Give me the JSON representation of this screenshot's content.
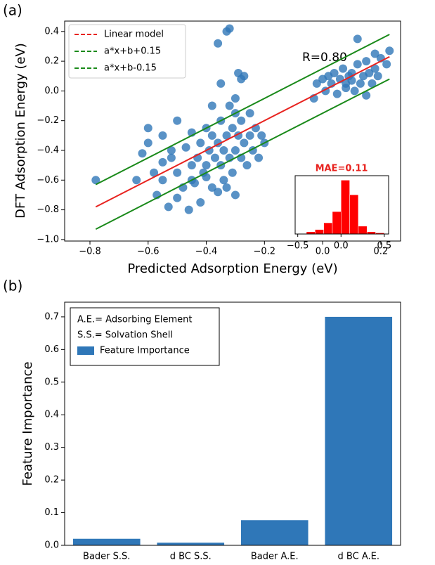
{
  "chart_data": [
    {
      "type": "scatter",
      "panel_label": "(a)",
      "x_label": "Predicted Adsorption Energy (eV)",
      "y_label": "DFT Adsorption Energy (eV)",
      "annotation": "R=0.80",
      "color": "#2f77b8",
      "x": [
        -0.78,
        -0.62,
        -0.6,
        -0.58,
        -0.57,
        -0.55,
        -0.55,
        -0.53,
        -0.52,
        -0.5,
        -0.5,
        -0.48,
        -0.47,
        -0.46,
        -0.45,
        -0.45,
        -0.44,
        -0.43,
        -0.42,
        -0.42,
        -0.41,
        -0.4,
        -0.4,
        -0.39,
        -0.38,
        -0.38,
        -0.37,
        -0.36,
        -0.36,
        -0.35,
        -0.35,
        -0.34,
        -0.34,
        -0.33,
        -0.33,
        -0.32,
        -0.32,
        -0.31,
        -0.31,
        -0.3,
        -0.3,
        -0.3,
        -0.29,
        -0.29,
        -0.28,
        -0.28,
        -0.27,
        -0.27,
        -0.26,
        -0.25,
        -0.25,
        -0.24,
        -0.23,
        -0.22,
        -0.21,
        -0.2,
        -0.38,
        -0.35,
        -0.32,
        -0.3,
        -0.28,
        -0.45,
        -0.5,
        -0.55,
        -0.6,
        -0.4,
        -0.33,
        -0.36,
        -0.64,
        -0.52,
        -0.02,
        0.0,
        0.01,
        0.02,
        0.03,
        0.04,
        0.05,
        0.06,
        0.07,
        0.08,
        0.09,
        0.1,
        0.11,
        0.12,
        0.13,
        0.14,
        0.15,
        0.16,
        0.17,
        0.18,
        0.19,
        0.2,
        0.22,
        0.23,
        0.12,
        0.08,
        0.1,
        0.15,
        0.18,
        -0.03
      ],
      "values": [
        -0.6,
        -0.42,
        -0.25,
        -0.55,
        -0.7,
        -0.3,
        -0.6,
        -0.78,
        -0.45,
        -0.55,
        -0.2,
        -0.65,
        -0.38,
        -0.8,
        -0.5,
        -0.28,
        -0.62,
        -0.45,
        -0.75,
        -0.35,
        -0.55,
        -0.5,
        -0.25,
        -0.4,
        -0.65,
        -0.1,
        -0.45,
        0.32,
        -0.35,
        -0.5,
        -0.2,
        -0.4,
        -0.6,
        0.4,
        -0.3,
        -0.45,
        -0.1,
        -0.55,
        -0.25,
        -0.4,
        -0.05,
        -0.7,
        -0.3,
        0.12,
        -0.45,
        -0.2,
        -0.35,
        0.1,
        -0.5,
        -0.3,
        -0.15,
        -0.4,
        -0.25,
        -0.45,
        -0.3,
        -0.35,
        -0.3,
        0.05,
        0.42,
        -0.15,
        0.08,
        -0.6,
        -0.72,
        -0.48,
        -0.35,
        -0.58,
        -0.65,
        -0.68,
        -0.6,
        -0.4,
        0.05,
        0.08,
        0.0,
        0.1,
        0.05,
        0.12,
        -0.02,
        0.08,
        0.15,
        0.05,
        0.1,
        0.12,
        0.0,
        0.18,
        0.05,
        0.1,
        0.2,
        0.12,
        0.05,
        0.15,
        0.1,
        0.22,
        0.18,
        0.27,
        0.35,
        0.02,
        0.07,
        -0.03,
        0.25,
        -0.05
      ],
      "lines": [
        {
          "name": "Linear model",
          "color": "#e8231f",
          "x": [
            -0.78,
            0.23
          ],
          "values": [
            -0.78,
            0.23
          ]
        },
        {
          "name": "a*x+b+0.15",
          "color": "#1a8a1a",
          "x": [
            -0.78,
            0.23
          ],
          "values": [
            -0.63,
            0.38
          ]
        },
        {
          "name": "a*x+b-0.15",
          "color": "#1a8a1a",
          "x": [
            -0.78,
            0.23
          ],
          "values": [
            -0.93,
            0.08
          ]
        }
      ],
      "xlim": [
        -0.887,
        0.268
      ],
      "ylim": [
        -1.01,
        0.47
      ],
      "xticks": [
        {
          "value": -0.8,
          "label": "−0.8"
        },
        {
          "value": -0.6,
          "label": "−0.6"
        },
        {
          "value": -0.4,
          "label": "−0.4"
        },
        {
          "value": -0.2,
          "label": "−0.2"
        },
        {
          "value": 0,
          "label": "0.0"
        },
        0.2
      ],
      "yticks": [
        {
          "value": -1.0,
          "label": "−1.0"
        },
        {
          "value": -0.8,
          "label": "−0.8"
        },
        {
          "value": -0.6,
          "label": "−0.6"
        },
        {
          "value": -0.4,
          "label": "−0.4"
        },
        {
          "value": -0.2,
          "label": "−0.2"
        },
        {
          "value": 0,
          "label": "0.0"
        },
        0.2,
        0.4
      ]
    },
    {
      "type": "histogram",
      "title": "MAE=0.11",
      "color": "#ff0000",
      "bins": [
        -0.5,
        -0.4,
        -0.3,
        -0.2,
        -0.1,
        0.0,
        0.1,
        0.2,
        0.3,
        0.4,
        0.5
      ],
      "values": [
        0,
        2,
        4,
        10,
        20,
        48,
        35,
        7,
        2,
        1
      ],
      "xlim": [
        -0.53,
        0.55
      ],
      "ylim": [
        0,
        52
      ],
      "xticks": [
        {
          "value": -0.5,
          "label": "−0.5"
        },
        {
          "value": 0,
          "label": "0.0"
        },
        0.5
      ]
    },
    {
      "type": "bar",
      "panel_label": "(b)",
      "y_label": "Feature Importance",
      "legend_notes": [
        "A.E.= Adsorbing Element",
        "S.S.= Solvation Shell"
      ],
      "categories": [
        "Bader S.S.",
        "d BC S.S.",
        "Bader A.E.",
        "d BC A.E."
      ],
      "series": [
        {
          "name": "Feature Importance",
          "color": "#2f77b8",
          "values": [
            0.02,
            0.008,
            0.077,
            0.7
          ]
        }
      ],
      "ylim": [
        0,
        0.745
      ],
      "yticks": [
        {
          "value": 0,
          "label": "0.0"
        },
        0.1,
        0.2,
        0.3,
        0.4,
        0.5,
        0.6,
        0.7
      ]
    }
  ]
}
